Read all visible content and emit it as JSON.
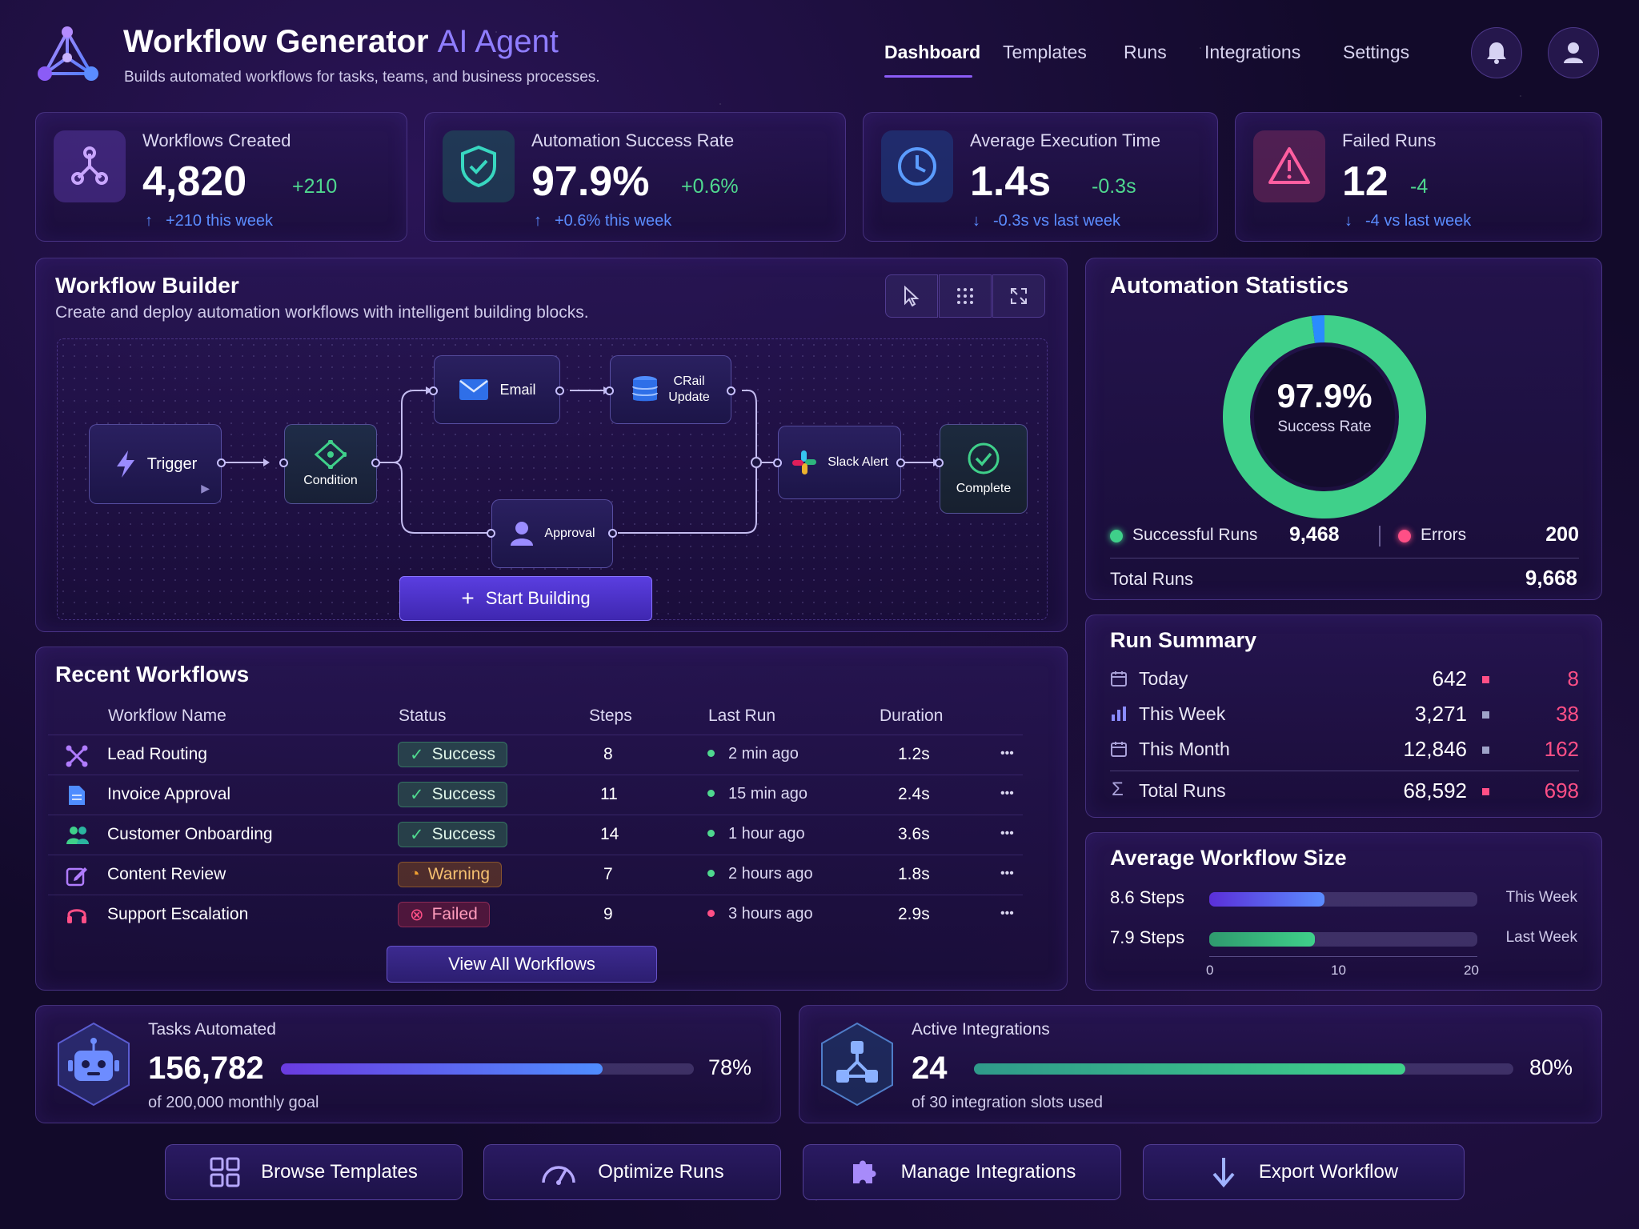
{
  "header": {
    "title_main": "Workflow Generator",
    "title_accent": "AI Agent",
    "subtitle": "Builds automated workflows for tasks, teams, and business processes.",
    "nav": [
      "Dashboard",
      "Templates",
      "Runs",
      "Integrations",
      "Settings"
    ],
    "active_nav": "Dashboard"
  },
  "kpis": [
    {
      "label": "Workflows Created",
      "value": "4,820",
      "delta": "+210",
      "note": "+210 this week",
      "icon": "nodes-icon"
    },
    {
      "label": "Automation Success Rate",
      "value": "97.9%",
      "delta": "+0.6%",
      "note": "+0.6% this week",
      "icon": "shield-check-icon"
    },
    {
      "label": "Average Execution Time",
      "value": "1.4s",
      "delta": "-0.3s",
      "note": "-0.3s vs last week",
      "icon": "clock-icon"
    },
    {
      "label": "Failed Runs",
      "value": "12",
      "delta": "-4",
      "note": "-4 vs last week",
      "icon": "warning-icon"
    }
  ],
  "builder": {
    "title": "Workflow Builder",
    "subtitle": "Create and deploy automation workflows with intelligent building blocks.",
    "nodes": {
      "trigger": "Trigger",
      "condition": "Condition",
      "email": "Email",
      "crm_line1": "CRail",
      "crm_line2": "Update",
      "approval": "Approval",
      "slack": "Slack Alert",
      "complete": "Complete"
    },
    "start_button": "Start Building"
  },
  "recent": {
    "title": "Recent Workflows",
    "columns": [
      "Workflow Name",
      "Status",
      "Steps",
      "Last Run",
      "Duration"
    ],
    "rows": [
      {
        "name": "Lead Routing",
        "status": "Success",
        "steps": "8",
        "last_run": "2 min ago",
        "duration": "1.2s",
        "icon": "route-icon"
      },
      {
        "name": "Invoice Approval",
        "status": "Success",
        "steps": "11",
        "last_run": "15 min ago",
        "duration": "2.4s",
        "icon": "document-icon"
      },
      {
        "name": "Customer Onboarding",
        "status": "Success",
        "steps": "14",
        "last_run": "1 hour ago",
        "duration": "3.6s",
        "icon": "users-icon"
      },
      {
        "name": "Content Review",
        "status": "Warning",
        "steps": "7",
        "last_run": "2 hours ago",
        "duration": "1.8s",
        "icon": "edit-icon"
      },
      {
        "name": "Support Escalation",
        "status": "Failed",
        "steps": "9",
        "last_run": "3 hours ago",
        "duration": "2.9s",
        "icon": "headset-icon"
      }
    ],
    "view_all": "View All Workflows",
    "more": "•••"
  },
  "stats": {
    "title": "Automation Statistics",
    "rate": "97.9%",
    "rate_label": "Success Rate",
    "success_fraction": 0.979,
    "successful_label": "Successful Runs",
    "successful_value": "9,468",
    "errors_label": "Errors",
    "errors_value": "200",
    "total_label": "Total Runs",
    "total_value": "9,668",
    "colors": {
      "success": "#3fd08a",
      "errors": "#ff4f86",
      "gap": "#2a8cff"
    }
  },
  "run_summary": {
    "title": "Run Summary",
    "rows": [
      {
        "label": "Today",
        "value": "642",
        "errors": "8"
      },
      {
        "label": "This Week",
        "value": "3,271",
        "errors": "38"
      },
      {
        "label": "This Month",
        "value": "12,846",
        "errors": "162"
      }
    ],
    "total": {
      "label": "Total Runs",
      "value": "68,592",
      "errors": "698"
    }
  },
  "avg_size": {
    "title": "Average Workflow Size",
    "bars": [
      {
        "label": "8.6 Steps",
        "value": 8.6,
        "period": "This Week"
      },
      {
        "label": "7.9 Steps",
        "value": 7.9,
        "period": "Last Week"
      }
    ],
    "ticks": [
      "0",
      "10",
      "20"
    ],
    "max": 20
  },
  "tasks": {
    "label": "Tasks Automated",
    "value": "156,782",
    "percent": "78%",
    "fraction": 0.78,
    "note": "of 200,000 monthly goal"
  },
  "integrations": {
    "label": "Active Integrations",
    "value": "24",
    "percent": "80%",
    "fraction": 0.8,
    "note": "of 30 integration slots used"
  },
  "actions": [
    "Browse Templates",
    "Optimize Runs",
    "Manage Integrations",
    "Export Workflow"
  ],
  "colors": {
    "accent": "#8b5cf6",
    "success": "#4fd88f",
    "warning": "#f0a030",
    "error": "#ff4f86",
    "blue": "#5b8cff"
  }
}
